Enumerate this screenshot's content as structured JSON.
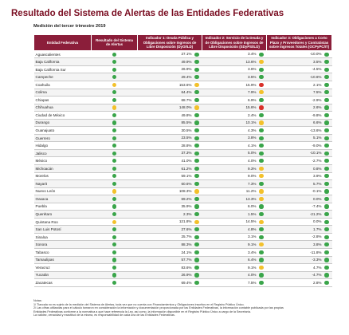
{
  "title": "Resultado del Sistema de Alertas de las Entidades Federativas",
  "subtitle": "Medición del tercer trimestre 2019",
  "colors": {
    "green": "#3aa54a",
    "yellow": "#f3c12c",
    "red": "#d9312a",
    "header": "#8b1e3a"
  },
  "headers": {
    "entity": "Entidad Federativa",
    "result": "Resultado del Sistema de Alertas",
    "ind1": "Indicador 1: Deuda Pública y Obligaciones sobre Ingresos de Libre Disposición (DyO/ILD)",
    "ind2": "Indicador 2: Servicio de la Deuda y de Obligaciones sobre Ingresos de Libre Disposición (SDyPS/ILD)",
    "ind3": "Indicador 3: Obligaciones a Corto Plazo y Proveedores y Contratistas sobre Ingresos Totales (OCPyPC/IT)"
  },
  "rows": [
    {
      "entity": "Aguascalientes",
      "result": "green",
      "i1": "27.1%",
      "c1": "green",
      "i2": "3.4%",
      "c2": "green",
      "i3": "-10.0%",
      "c3": "green"
    },
    {
      "entity": "Baja California",
      "result": "green",
      "i1": "49.9%",
      "c1": "green",
      "i2": "13.6%",
      "c2": "yellow",
      "i3": "3.5%",
      "c3": "green"
    },
    {
      "entity": "Baja California Sur",
      "result": "green",
      "i1": "26.9%",
      "c1": "green",
      "i2": "3.6%",
      "c2": "green",
      "i3": "-4.5%",
      "c3": "green"
    },
    {
      "entity": "Campeche",
      "result": "green",
      "i1": "29.4%",
      "c1": "green",
      "i2": "3.5%",
      "c2": "green",
      "i3": "-10.6%",
      "c3": "green"
    },
    {
      "entity": "Coahuila",
      "result": "yellow",
      "i1": "153.6%",
      "c1": "yellow",
      "i2": "15.9%",
      "c2": "red",
      "i3": "2.1%",
      "c3": "green"
    },
    {
      "entity": "Colima",
      "result": "green",
      "i1": "64.4%",
      "c1": "green",
      "i2": "7.9%",
      "c2": "yellow",
      "i3": "7.5%",
      "c3": "green"
    },
    {
      "entity": "Chiapas",
      "result": "green",
      "i1": "68.7%",
      "c1": "green",
      "i2": "6.9%",
      "c2": "green",
      "i3": "-2.9%",
      "c3": "green"
    },
    {
      "entity": "Chihuahua",
      "result": "yellow",
      "i1": "148.0%",
      "c1": "yellow",
      "i2": "15.6%",
      "c2": "red",
      "i3": "2.6%",
      "c3": "green"
    },
    {
      "entity": "Ciudad de México",
      "result": "green",
      "i1": "49.8%",
      "c1": "green",
      "i2": "2.4%",
      "c2": "green",
      "i3": "-9.8%",
      "c3": "green"
    },
    {
      "entity": "Durango",
      "result": "green",
      "i1": "85.5%",
      "c1": "green",
      "i2": "10.1%",
      "c2": "yellow",
      "i3": "6.6%",
      "c3": "green"
    },
    {
      "entity": "Guanajuato",
      "result": "green",
      "i1": "30.5%",
      "c1": "green",
      "i2": "4.3%",
      "c2": "green",
      "i3": "-13.6%",
      "c3": "green"
    },
    {
      "entity": "Guerrero",
      "result": "green",
      "i1": "23.5%",
      "c1": "green",
      "i2": "3.8%",
      "c2": "green",
      "i3": "5.1%",
      "c3": "green"
    },
    {
      "entity": "Hidalgo",
      "result": "green",
      "i1": "28.8%",
      "c1": "green",
      "i2": "4.1%",
      "c2": "green",
      "i3": "-9.0%",
      "c3": "green"
    },
    {
      "entity": "Jalisco",
      "result": "green",
      "i1": "37.3%",
      "c1": "green",
      "i2": "5.0%",
      "c2": "green",
      "i3": "-10.1%",
      "c3": "green"
    },
    {
      "entity": "México",
      "result": "green",
      "i1": "41.0%",
      "c1": "green",
      "i2": "4.0%",
      "c2": "green",
      "i3": "-2.7%",
      "c3": "green"
    },
    {
      "entity": "Michoacán",
      "result": "green",
      "i1": "61.2%",
      "c1": "green",
      "i2": "9.3%",
      "c2": "yellow",
      "i3": "0.8%",
      "c3": "green"
    },
    {
      "entity": "Morelos",
      "result": "green",
      "i1": "59.1%",
      "c1": "green",
      "i2": "9.0%",
      "c2": "yellow",
      "i3": "3.9%",
      "c3": "green"
    },
    {
      "entity": "Nayarit",
      "result": "green",
      "i1": "60.6%",
      "c1": "green",
      "i2": "7.3%",
      "c2": "green",
      "i3": "5.7%",
      "c3": "green"
    },
    {
      "entity": "Nuevo León",
      "result": "yellow",
      "i1": "108.3%",
      "c1": "yellow",
      "i2": "11.2%",
      "c2": "yellow",
      "i3": "-0.1%",
      "c3": "green"
    },
    {
      "entity": "Oaxaca",
      "result": "green",
      "i1": "69.2%",
      "c1": "green",
      "i2": "13.3%",
      "c2": "yellow",
      "i3": "0.0%",
      "c3": "green"
    },
    {
      "entity": "Puebla",
      "result": "green",
      "i1": "35.9%",
      "c1": "green",
      "i2": "6.0%",
      "c2": "green",
      "i3": "-7.4%",
      "c3": "green"
    },
    {
      "entity": "Querétaro",
      "result": "green",
      "i1": "2.3%",
      "c1": "green",
      "i2": "1.5%",
      "c2": "green",
      "i3": "-21.2%",
      "c3": "green"
    },
    {
      "entity": "Quintana Roo",
      "result": "yellow",
      "i1": "121.8%",
      "c1": "yellow",
      "i2": "14.5%",
      "c2": "yellow",
      "i3": "0.0%",
      "c3": "green"
    },
    {
      "entity": "San Luis Potosí",
      "result": "green",
      "i1": "27.6%",
      "c1": "green",
      "i2": "4.8%",
      "c2": "green",
      "i3": "1.7%",
      "c3": "green"
    },
    {
      "entity": "Sinaloa",
      "result": "green",
      "i1": "25.7%",
      "c1": "green",
      "i2": "3.1%",
      "c2": "green",
      "i3": "-2.8%",
      "c3": "green"
    },
    {
      "entity": "Sonora",
      "result": "green",
      "i1": "88.3%",
      "c1": "green",
      "i2": "9.1%",
      "c2": "yellow",
      "i3": "3.8%",
      "c3": "green"
    },
    {
      "entity": "Tabasco",
      "result": "green",
      "i1": "24.1%",
      "c1": "green",
      "i2": "3.4%",
      "c2": "green",
      "i3": "-11.8%",
      "c3": "green"
    },
    {
      "entity": "Tamaulipas",
      "result": "green",
      "i1": "57.7%",
      "c1": "green",
      "i2": "6.4%",
      "c2": "green",
      "i3": "-3.3%",
      "c3": "green"
    },
    {
      "entity": "Veracruz",
      "result": "green",
      "i1": "83.6%",
      "c1": "green",
      "i2": "9.1%",
      "c2": "yellow",
      "i3": "4.7%",
      "c3": "green"
    },
    {
      "entity": "Yucatán",
      "result": "green",
      "i1": "26.9%",
      "c1": "green",
      "i2": "4.0%",
      "c2": "green",
      "i3": "-4.7%",
      "c3": "green"
    },
    {
      "entity": "Zacatecas",
      "result": "green",
      "i1": "69.4%",
      "c1": "green",
      "i2": "7.5%",
      "c2": "green",
      "i3": "2.8%",
      "c3": "green"
    }
  ],
  "notes": [
    "Notas:",
    "1/ Tlaxcala no es sujeto de la medición del Sistema de Alertas, toda vez que no cuenta con Financiamientos y Obligaciones inscritos en el Registro Público Único.",
    "2/ Las cifras utilizadas para el cálculo tomaron en consideración la información y documentación proporcionada por las Entidades Federativas, la información contable publicada por las propias",
    "Entidades Federativas conforme a la normativa a que hace referencia la Ley, así como, la información disponible en el Registro Público Único a cargo de la Secretaría.",
    "La validez, veracidad y exactitud de la misma, es responsabilidad de cada una de las Entidades Federativas."
  ]
}
